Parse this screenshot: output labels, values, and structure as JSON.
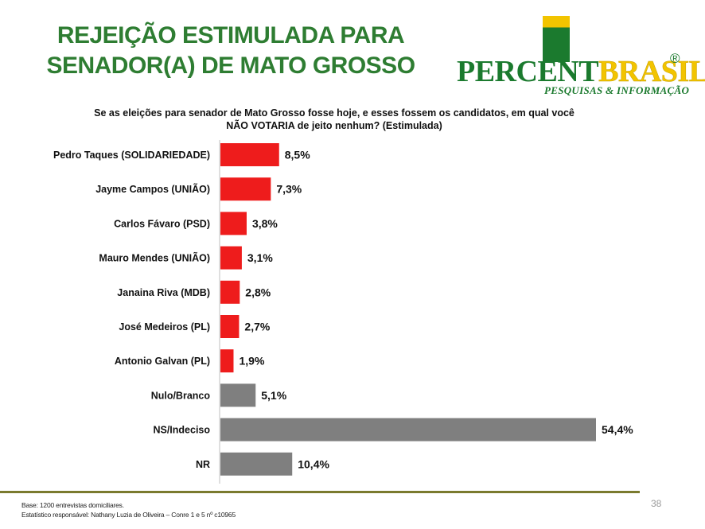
{
  "title_line1": "REJEIÇÃO ESTIMULADA PARA",
  "title_line2": "SENADOR(A) DE MATO GROSSO",
  "logo": {
    "word_part1": "PERCENT",
    "word_part2": "BRASIL",
    "registered": "®",
    "subtitle": "PESQUISAS & INFORMAÇÃO",
    "colors": {
      "green": "#1b7a2e",
      "yellow": "#f2c400"
    }
  },
  "question_line1": "Se as eleições para senador de Mato Grosso fosse hoje, e esses fossem os candidatos, em qual você",
  "question_line2": "NÃO VOTARIA de jeito nenhum? (Estimulada)",
  "chart_data": {
    "type": "bar",
    "orientation": "horizontal",
    "categories": [
      "Pedro Taques (SOLIDARIEDADE)",
      "Jayme Campos (UNIÃO)",
      "Carlos Fávaro (PSD)",
      "Mauro Mendes (UNIÃO)",
      "Janaina Riva (MDB)",
      "José Medeiros (PL)",
      "Antonio Galvan (PL)",
      "Nulo/Branco",
      "NS/Indeciso",
      "NR"
    ],
    "values": [
      8.5,
      7.3,
      3.8,
      3.1,
      2.8,
      2.7,
      1.9,
      5.1,
      54.4,
      10.4
    ],
    "value_labels": [
      "8,5%",
      "7,3%",
      "3,8%",
      "3,1%",
      "2,8%",
      "2,7%",
      "1,9%",
      "5,1%",
      "54,4%",
      "10,4%"
    ],
    "bar_colors": [
      "#ee1c1c",
      "#ee1c1c",
      "#ee1c1c",
      "#ee1c1c",
      "#ee1c1c",
      "#ee1c1c",
      "#ee1c1c",
      "#7f7f7f",
      "#7f7f7f",
      "#7f7f7f"
    ],
    "xlim": [
      0,
      54.4
    ],
    "grid": false,
    "legend": "none"
  },
  "footer_line1": "Base: 1200 entrevistas domiciliares.",
  "footer_line2": "Estatístico responsável: Nathany Luzia de Oliveira – Conre 1 e 5 nº c10965",
  "page_number": "38"
}
